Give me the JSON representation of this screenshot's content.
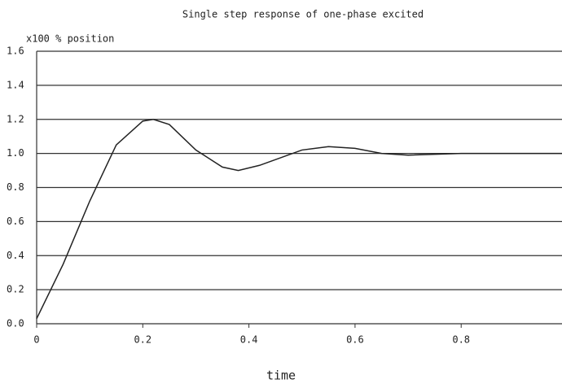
{
  "chart_data": {
    "type": "line",
    "title": "Single step response of one-phase excited",
    "y_label": "x100 % position",
    "x_label": "time",
    "x": [
      0,
      0.05,
      0.1,
      0.15,
      0.2,
      0.22,
      0.25,
      0.3,
      0.35,
      0.38,
      0.42,
      0.5,
      0.55,
      0.6,
      0.65,
      0.7,
      0.8,
      0.9,
      0.99
    ],
    "values": [
      0.03,
      0.35,
      0.72,
      1.05,
      1.19,
      1.2,
      1.17,
      1.02,
      0.92,
      0.9,
      0.93,
      1.02,
      1.04,
      1.03,
      1.0,
      0.99,
      1.0,
      1.0,
      1.0
    ],
    "color": "#222222",
    "xlim": [
      0,
      0.99
    ],
    "ylim": [
      0,
      1.6
    ],
    "xticks": [
      0,
      0.2,
      0.4,
      0.6,
      0.8
    ],
    "yticks": [
      {
        "value": 0,
        "label": "0.0"
      },
      0.2,
      0.4,
      0.6,
      0.8,
      {
        "value": 1,
        "label": "1.0"
      },
      1.2,
      1.4,
      1.6
    ],
    "grid": true
  }
}
